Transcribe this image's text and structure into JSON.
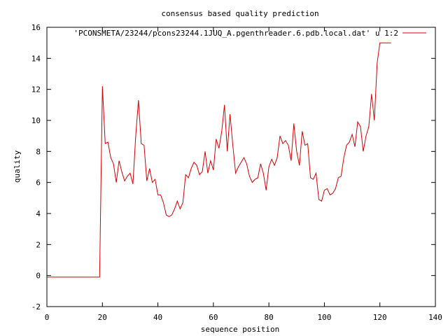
{
  "chart_data": {
    "type": "line",
    "title": "consensus based quality prediction",
    "xlabel": "sequence position",
    "ylabel": "quality",
    "xlim": [
      0,
      140
    ],
    "ylim": [
      -2,
      16
    ],
    "xticks": [
      0,
      20,
      40,
      60,
      80,
      100,
      120,
      140
    ],
    "yticks": [
      -2,
      0,
      2,
      4,
      6,
      8,
      10,
      12,
      14,
      16
    ],
    "grid": false,
    "legend_position": "top-right",
    "series": [
      {
        "name": "'PCONSMETA/23244/pcons23244.1JUQ_A.pgenthreader.6.pdb.local.dat' u 1:2",
        "color": "#d40000",
        "x": [
          0,
          1,
          2,
          3,
          4,
          5,
          6,
          7,
          8,
          9,
          10,
          11,
          12,
          13,
          14,
          15,
          16,
          17,
          18,
          19,
          20,
          21,
          22,
          23,
          24,
          25,
          26,
          27,
          28,
          29,
          30,
          31,
          32,
          33,
          34,
          35,
          36,
          37,
          38,
          39,
          40,
          41,
          42,
          43,
          44,
          45,
          46,
          47,
          48,
          49,
          50,
          51,
          52,
          53,
          54,
          55,
          56,
          57,
          58,
          59,
          60,
          61,
          62,
          63,
          64,
          65,
          66,
          67,
          68,
          69,
          70,
          71,
          72,
          73,
          74,
          75,
          76,
          77,
          78,
          79,
          80,
          81,
          82,
          83,
          84,
          85,
          86,
          87,
          88,
          89,
          90,
          91,
          92,
          93,
          94,
          95,
          96,
          97,
          98,
          99,
          100,
          101,
          102,
          103,
          104,
          105,
          106,
          107,
          108,
          109,
          110,
          111,
          112,
          113,
          114,
          115,
          116,
          117,
          118,
          119,
          120,
          121,
          122,
          123,
          124
        ],
        "y": [
          -0.1,
          -0.1,
          -0.1,
          -0.1,
          -0.1,
          -0.1,
          -0.1,
          -0.1,
          -0.1,
          -0.1,
          -0.1,
          -0.1,
          -0.1,
          -0.1,
          -0.1,
          -0.1,
          -0.1,
          -0.1,
          -0.1,
          -0.1,
          12.2,
          8.5,
          8.6,
          7.6,
          7.2,
          6.0,
          7.4,
          6.7,
          6.1,
          6.4,
          6.6,
          5.9,
          9.0,
          11.3,
          8.5,
          8.4,
          6.1,
          6.9,
          6.0,
          6.2,
          5.2,
          5.2,
          4.7,
          3.9,
          3.8,
          3.9,
          4.3,
          4.8,
          4.3,
          4.7,
          6.5,
          6.3,
          6.9,
          7.3,
          7.1,
          6.5,
          6.7,
          8.0,
          6.6,
          7.4,
          6.8,
          8.8,
          8.2,
          9.3,
          11.0,
          8.0,
          10.4,
          8.4,
          6.6,
          7.0,
          7.3,
          7.6,
          7.2,
          6.4,
          6.0,
          6.2,
          6.3,
          7.2,
          6.6,
          5.5,
          7.0,
          7.5,
          7.1,
          7.6,
          9.0,
          8.5,
          8.7,
          8.4,
          7.4,
          9.8,
          8.0,
          7.1,
          9.3,
          8.4,
          8.5,
          6.3,
          6.2,
          6.6,
          4.9,
          4.8,
          5.5,
          5.6,
          5.2,
          5.3,
          5.6,
          6.3,
          6.4,
          7.6,
          8.4,
          8.6,
          9.1,
          8.3,
          9.9,
          9.6,
          8.0,
          9.0,
          9.6,
          11.7,
          10.0,
          13.7,
          15.0,
          15.0,
          15.0,
          15.0,
          15.0
        ]
      }
    ]
  }
}
